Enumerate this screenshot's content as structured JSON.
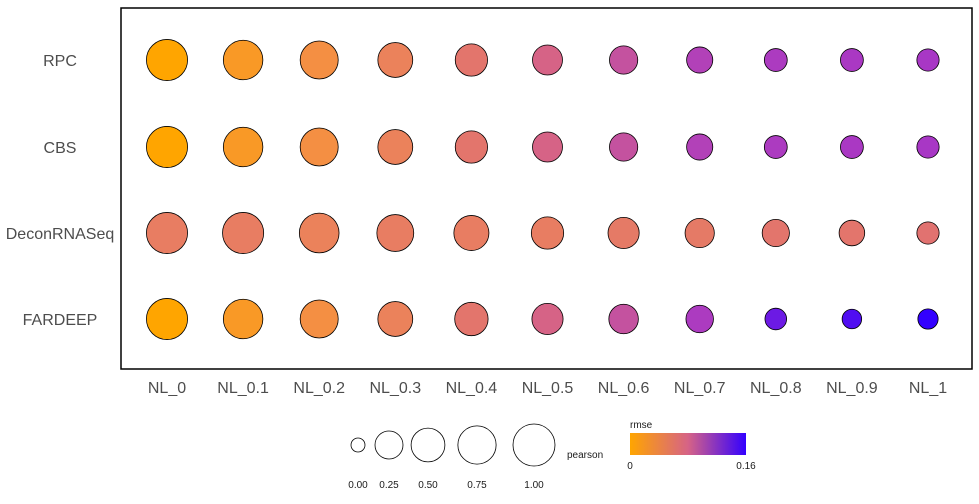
{
  "chart_data": {
    "type": "bubble",
    "x_categories": [
      "NL_0",
      "NL_0.1",
      "NL_0.2",
      "NL_0.3",
      "NL_0.4",
      "NL_0.5",
      "NL_0.6",
      "NL_0.7",
      "NL_0.8",
      "NL_0.9",
      "NL_1"
    ],
    "y_categories": [
      "RPC",
      "CBS",
      "DeconRNASeq",
      "FARDEEP"
    ],
    "series": [
      {
        "method": "RPC",
        "pearson": [
          0.95,
          0.86,
          0.78,
          0.62,
          0.5,
          0.4,
          0.33,
          0.25,
          0.14,
          0.14,
          0.12
        ],
        "rmse": [
          0.0,
          0.02,
          0.035,
          0.05,
          0.062,
          0.08,
          0.095,
          0.11,
          0.115,
          0.117,
          0.118
        ]
      },
      {
        "method": "CBS",
        "pearson": [
          0.95,
          0.86,
          0.78,
          0.62,
          0.5,
          0.4,
          0.33,
          0.25,
          0.14,
          0.14,
          0.12
        ],
        "rmse": [
          0.0,
          0.02,
          0.035,
          0.05,
          0.062,
          0.08,
          0.095,
          0.11,
          0.115,
          0.117,
          0.118
        ]
      },
      {
        "method": "DeconRNASeq",
        "pearson": [
          0.95,
          0.95,
          0.87,
          0.72,
          0.63,
          0.5,
          0.45,
          0.37,
          0.29,
          0.23,
          0.12
        ],
        "rmse": [
          0.055,
          0.055,
          0.05,
          0.055,
          0.055,
          0.055,
          0.058,
          0.058,
          0.062,
          0.062,
          0.065
        ]
      },
      {
        "method": "FARDEEP",
        "pearson": [
          0.95,
          0.86,
          0.78,
          0.62,
          0.55,
          0.45,
          0.38,
          0.3,
          0.1,
          0.04,
          0.06
        ],
        "rmse": [
          0.0,
          0.02,
          0.035,
          0.05,
          0.062,
          0.08,
          0.095,
          0.115,
          0.14,
          0.15,
          0.16
        ]
      }
    ],
    "size_legend": {
      "title": "pearson",
      "breaks": [
        0.0,
        0.25,
        0.5,
        0.75,
        1.0
      ],
      "labels": [
        "0.00",
        "0.25",
        "0.50",
        "0.75",
        "1.00"
      ]
    },
    "color_legend": {
      "title": "rmse",
      "min": 0,
      "max": 0.16,
      "min_label": "0",
      "max_label": "0.16",
      "low_color": "#FFA500",
      "high_color": "#3300FF"
    },
    "grid": false,
    "legend_position": "bottom"
  }
}
